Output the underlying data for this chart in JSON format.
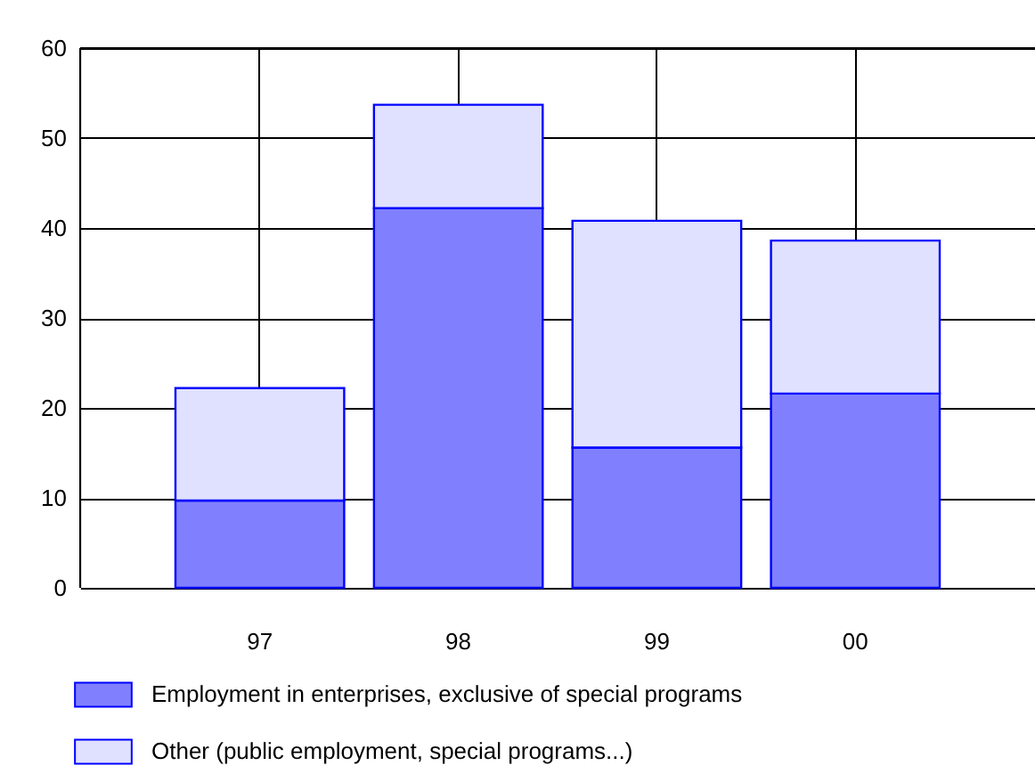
{
  "chart_data": {
    "type": "bar",
    "stacked": true,
    "categories": [
      "97",
      "98",
      "99",
      "00"
    ],
    "series": [
      {
        "name": "Employment in enterprises, exclusive of special programs",
        "color": "#8080ff",
        "values": [
          9.7,
          42.2,
          15.6,
          21.6
        ]
      },
      {
        "name": "Other (public employment, special programs...)",
        "color": "#e0e0ff",
        "values": [
          12.5,
          11.5,
          25.2,
          17.0
        ]
      }
    ],
    "ylim": [
      0,
      60
    ],
    "yticks": [
      0,
      10,
      20,
      30,
      40,
      50,
      60
    ],
    "grid": true,
    "legend": "bottom"
  }
}
